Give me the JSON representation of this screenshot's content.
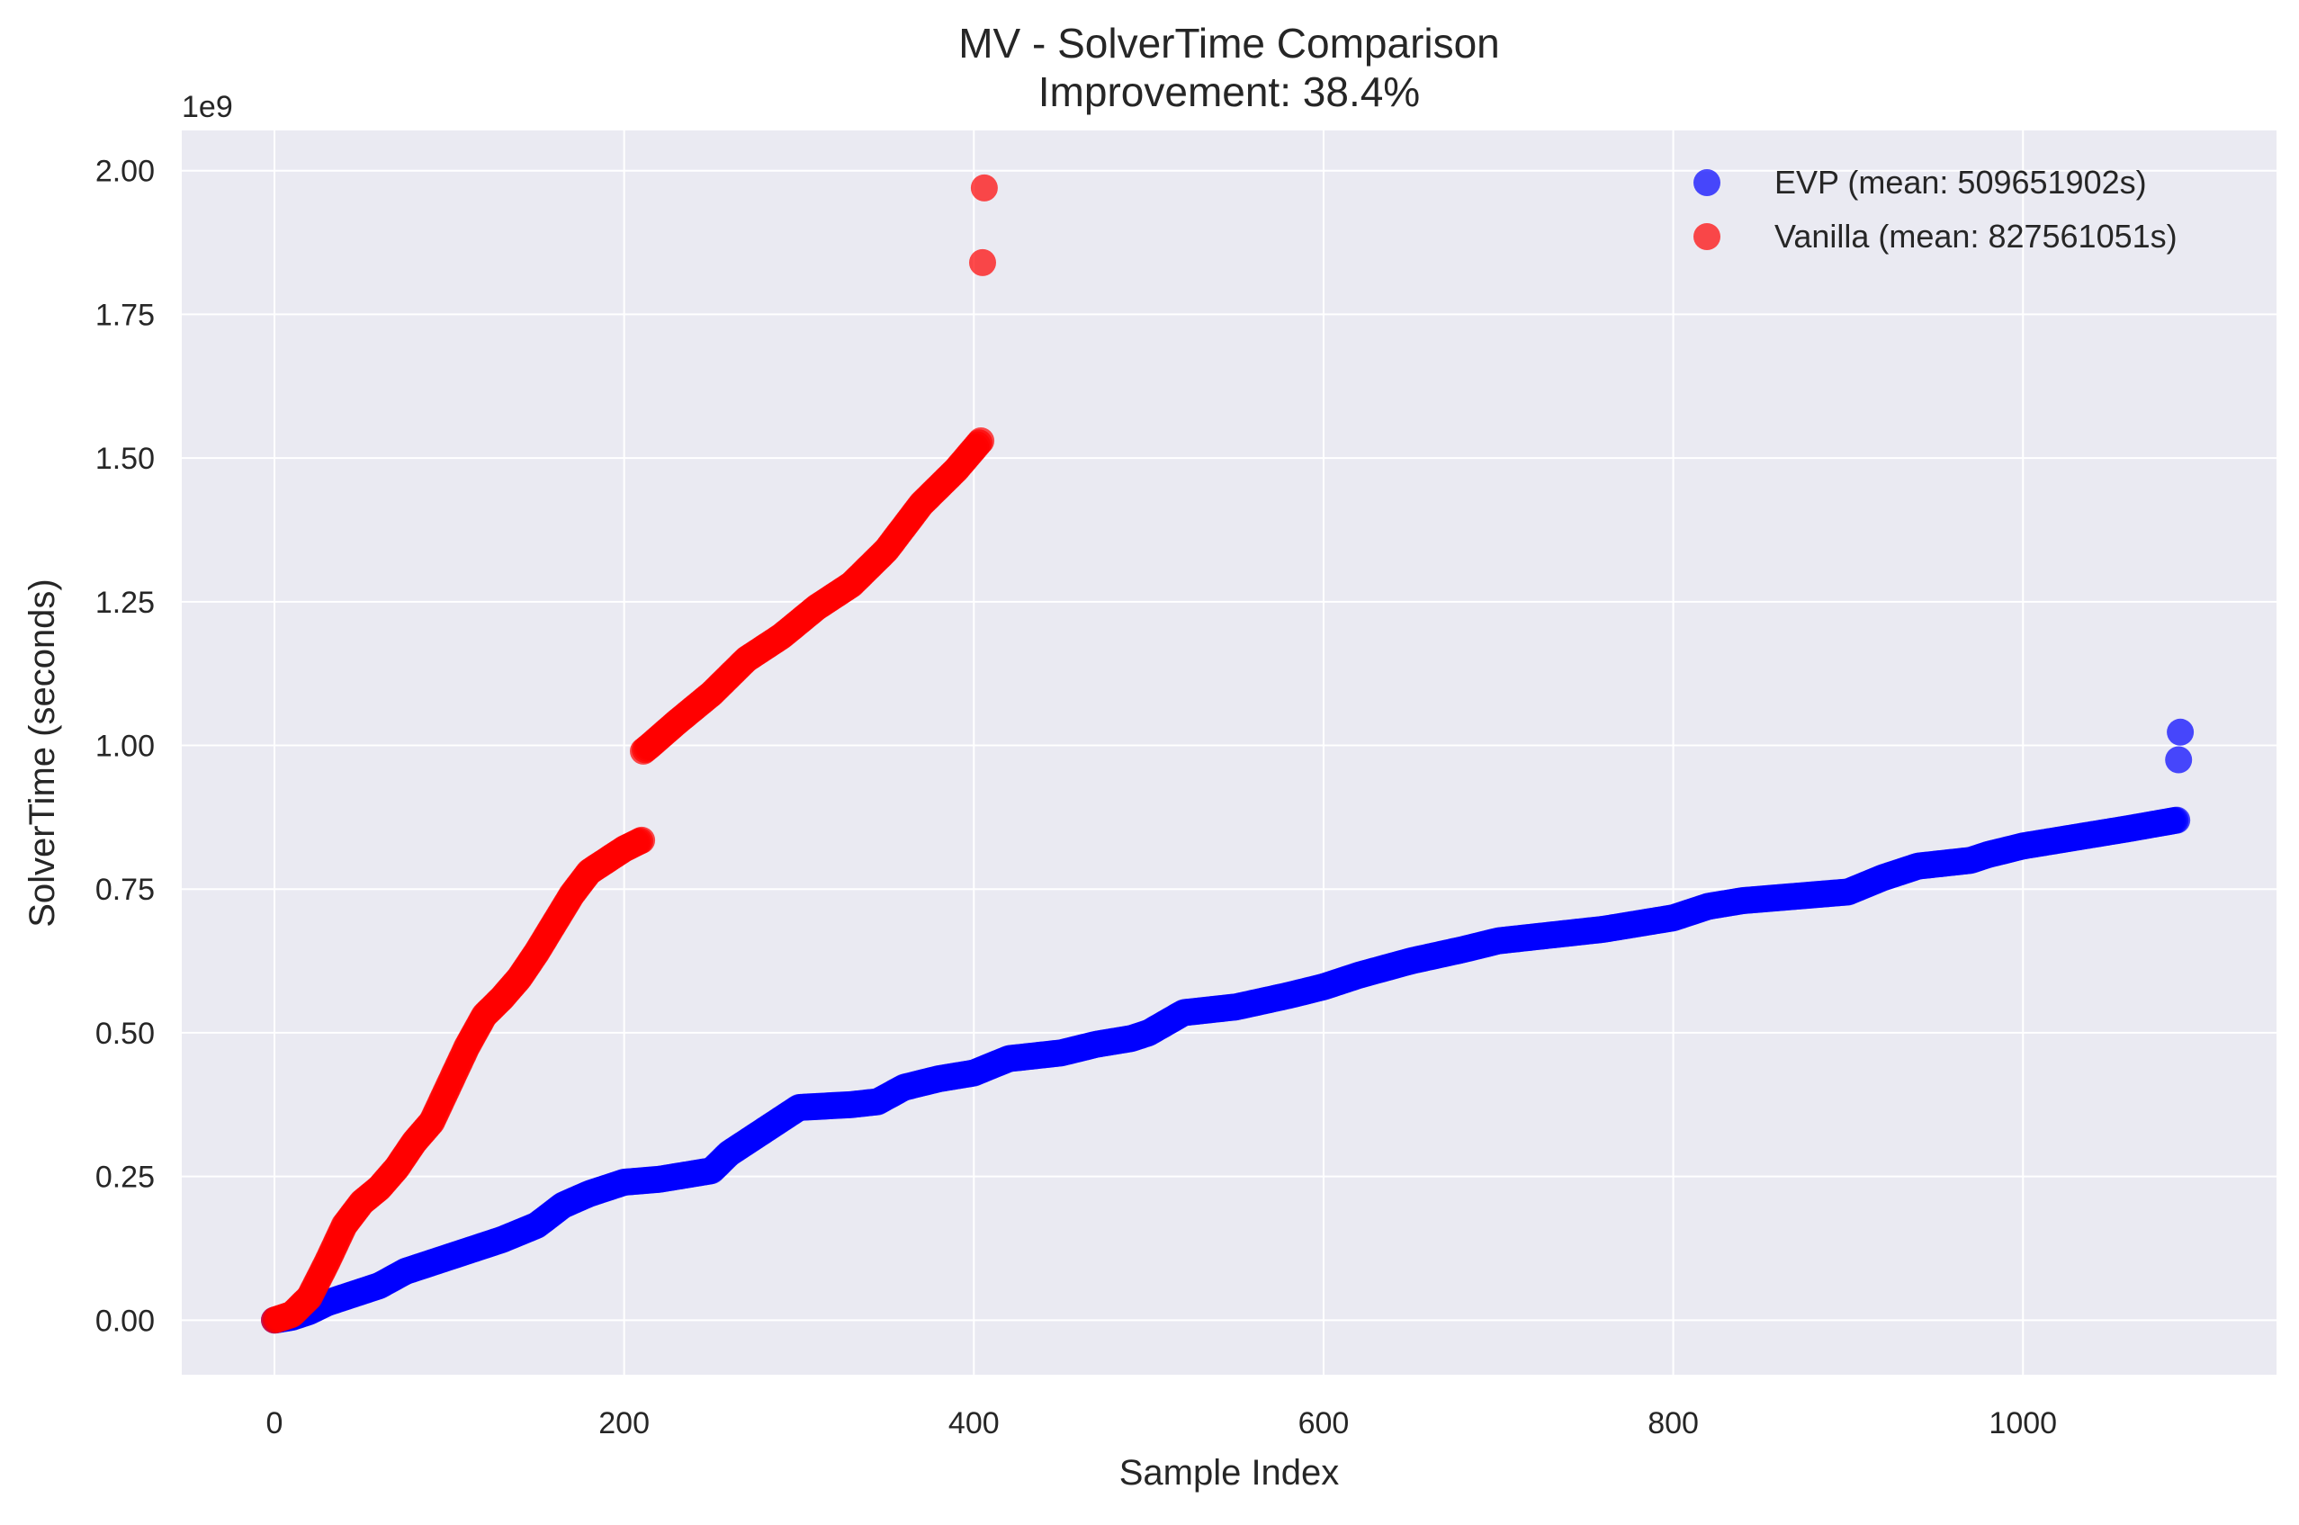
{
  "chart_data": {
    "type": "scatter",
    "title_line1": "MV - SolverTime Comparison",
    "title_line2": "Improvement: 38.4%",
    "xlabel": "Sample Index",
    "ylabel": "SolverTime (seconds)",
    "y_offset_label": "1e9",
    "xlim": [
      -53,
      1145
    ],
    "ylim": [
      -0.095,
      2.07
    ],
    "y_scale": 1000000000,
    "x_ticks": [
      0,
      200,
      400,
      600,
      800,
      1000
    ],
    "x_tick_labels": [
      "0",
      "200",
      "400",
      "600",
      "800",
      "1000"
    ],
    "y_ticks": [
      0.0,
      0.25,
      0.5,
      0.75,
      1.0,
      1.25,
      1.5,
      1.75,
      2.0
    ],
    "y_tick_labels": [
      "0.00",
      "0.25",
      "0.50",
      "0.75",
      "1.00",
      "1.25",
      "1.50",
      "1.75",
      "2.00"
    ],
    "grid": true,
    "legend_position": "top-right",
    "plot_background": "#EAEAF2",
    "series": [
      {
        "name": "EVP (mean: 509651902s)",
        "color": "#0000FF",
        "count": 1090,
        "curve_x": [
          0,
          10,
          20,
          30,
          45,
          60,
          75,
          90,
          110,
          130,
          150,
          165,
          180,
          200,
          220,
          240,
          250,
          260,
          270,
          280,
          290,
          300,
          330,
          345,
          360,
          380,
          400,
          420,
          450,
          470,
          490,
          500,
          520,
          550,
          580,
          600,
          620,
          650,
          680,
          700,
          730,
          760,
          780,
          800,
          820,
          840,
          880,
          900,
          920,
          940,
          970,
          980,
          1000,
          1030,
          1060,
          1088
        ],
        "curve_y": [
          0.0,
          0.005,
          0.015,
          0.03,
          0.045,
          0.06,
          0.085,
          0.1,
          0.12,
          0.14,
          0.165,
          0.2,
          0.22,
          0.24,
          0.245,
          0.255,
          0.26,
          0.29,
          0.31,
          0.33,
          0.35,
          0.37,
          0.375,
          0.38,
          0.405,
          0.42,
          0.43,
          0.455,
          0.465,
          0.48,
          0.49,
          0.5,
          0.535,
          0.545,
          0.565,
          0.58,
          0.6,
          0.625,
          0.645,
          0.66,
          0.67,
          0.68,
          0.69,
          0.7,
          0.72,
          0.73,
          0.74,
          0.745,
          0.77,
          0.79,
          0.8,
          0.81,
          0.825,
          0.84,
          0.855,
          0.87
        ],
        "outliers": [
          [
            1089,
            0.975
          ],
          [
            1090,
            1.023
          ]
        ]
      },
      {
        "name": "Vanilla (mean: 827561051s)",
        "color": "#FF0000",
        "count": 406,
        "curve_x": [
          0,
          10,
          20,
          30,
          40,
          50,
          60,
          70,
          80,
          90,
          100,
          110,
          120,
          130,
          140,
          150,
          160,
          170,
          180,
          190,
          200,
          210,
          211,
          215,
          230,
          250,
          270,
          290,
          310,
          330,
          350,
          370,
          390,
          404
        ],
        "curve_y": [
          0.0,
          0.01,
          0.04,
          0.1,
          0.165,
          0.205,
          0.23,
          0.265,
          0.31,
          0.345,
          0.41,
          0.475,
          0.53,
          0.56,
          0.595,
          0.64,
          0.69,
          0.74,
          0.78,
          0.8,
          0.82,
          0.835,
          0.99,
          1.0,
          1.04,
          1.09,
          1.15,
          1.19,
          1.24,
          1.28,
          1.34,
          1.42,
          1.48,
          1.53
        ],
        "outliers": [
          [
            405,
            1.84
          ],
          [
            406,
            1.97
          ]
        ]
      }
    ]
  }
}
